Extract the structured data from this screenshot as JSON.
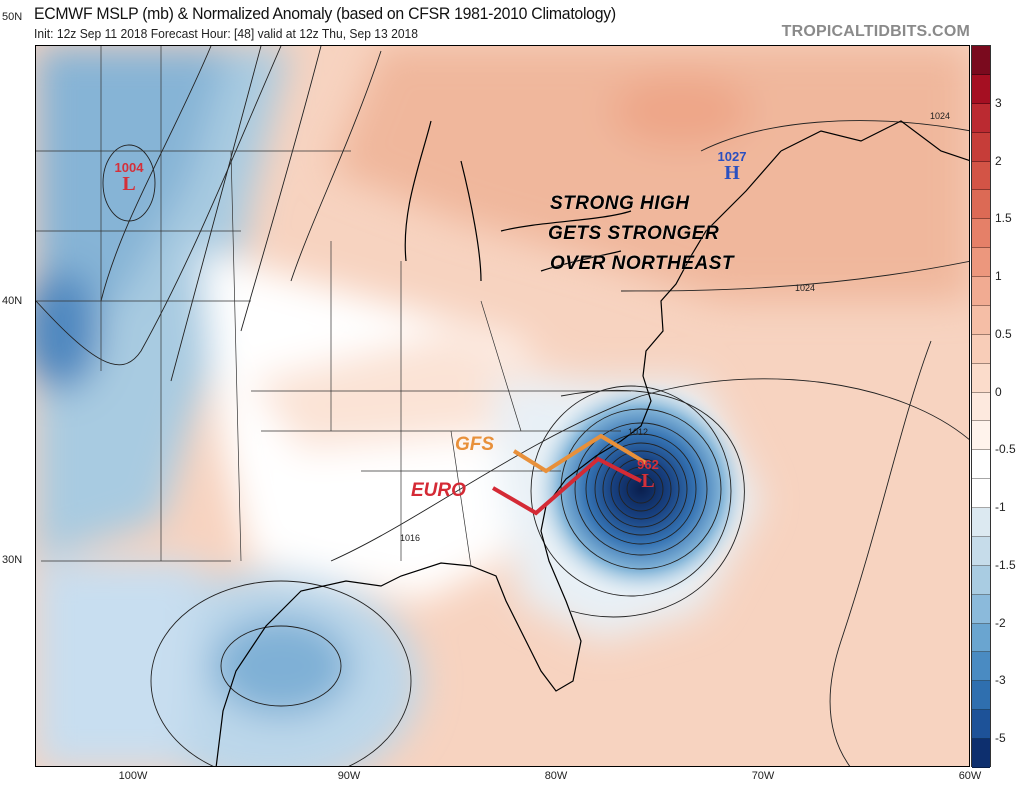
{
  "header": {
    "title": "ECMWF MSLP (mb) & Normalized Anomaly (based on CFSR 1981-2010 Climatology)",
    "subtitle": "Init: 12z Sep 11 2018   Forecast Hour: [48]   valid at 12z Thu, Sep 13 2018",
    "watermark": "TROPICALTIDBITS.COM"
  },
  "axes": {
    "lat_labels": [
      "50N",
      "40N",
      "30N"
    ],
    "lon_labels": [
      "100W",
      "90W",
      "80W",
      "70W",
      "60W"
    ]
  },
  "colorbar": {
    "labels": [
      "3",
      "2",
      "1.5",
      "1",
      "0.5",
      "0",
      "-0.5",
      "-1",
      "-1.5",
      "-2",
      "-3",
      "-5"
    ],
    "colors": [
      "#7a0a1e",
      "#a50f22",
      "#bb2a31",
      "#c63d39",
      "#d35446",
      "#dc6a55",
      "#e58068",
      "#ec977d",
      "#f1ab92",
      "#f5bea6",
      "#f8cdb8",
      "#fbdccb",
      "#fde9de",
      "#fff3ec",
      "#ffffff",
      "#ffffff",
      "#dce9f1",
      "#c6dcea",
      "#a9cce2",
      "#8bbadb",
      "#6aa5d0",
      "#4a8bc2",
      "#2f6faf",
      "#1d5298",
      "#0d2f6e"
    ]
  },
  "annotations": {
    "headline": [
      "STRONG HIGH",
      "GETS STRONGER",
      "OVER NORTHEAST"
    ],
    "tracks": [
      {
        "label": "GFS",
        "color": "#e8903a"
      },
      {
        "label": "EURO",
        "color": "#d42a35"
      }
    ]
  },
  "pressure_centers": [
    {
      "type": "L",
      "value": "1004",
      "color": "#d4303a"
    },
    {
      "type": "H",
      "value": "1027",
      "color": "#2a4fc0"
    },
    {
      "type": "L",
      "value": "962",
      "color": "#d4303a"
    }
  ],
  "contour_labels": [
    "1024",
    "1024",
    "1012",
    "1016"
  ]
}
